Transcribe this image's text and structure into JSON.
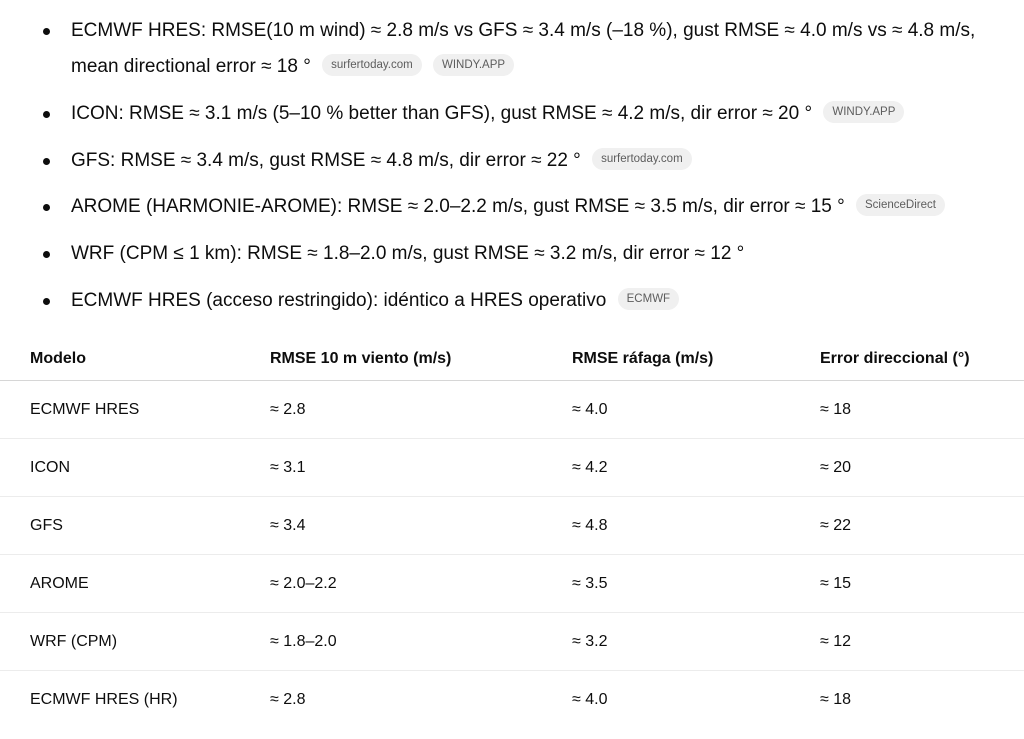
{
  "bullets": [
    {
      "lines": [
        "ECMWF HRES: RMSE(10 m wind) ≈ 2.8 m/s vs GFS ≈ 3.4 m/s (–18 %), gust RMSE ≈ 4.0 m/s vs ≈ 4.8 m/s,",
        "mean directional error ≈ 18 °"
      ],
      "chips": [
        "surfertoday.com",
        "WINDY.APP"
      ]
    },
    {
      "lines": [
        "ICON: RMSE ≈ 3.1 m/s (5–10 % better than GFS), gust RMSE ≈ 4.2 m/s, dir error ≈ 20 °"
      ],
      "chips": [
        "WINDY.APP"
      ]
    },
    {
      "lines": [
        "GFS: RMSE ≈ 3.4 m/s, gust RMSE ≈ 4.8 m/s, dir error ≈ 22 °"
      ],
      "chips": [
        "surfertoday.com"
      ]
    },
    {
      "lines": [
        "AROME (HARMONIE-AROME): RMSE ≈ 2.0–2.2 m/s, gust RMSE ≈ 3.5 m/s, dir error ≈ 15 °"
      ],
      "chips": [
        "ScienceDirect"
      ]
    },
    {
      "lines": [
        "WRF (CPM ≤ 1 km): RMSE ≈ 1.8–2.0 m/s, gust RMSE ≈ 3.2 m/s, dir error ≈ 12 °"
      ],
      "chips": []
    },
    {
      "lines": [
        "ECMWF HRES (acceso restringido): idéntico a HRES operativo"
      ],
      "chips": [
        "ECMWF"
      ]
    }
  ],
  "table": {
    "headers": [
      "Modelo",
      "RMSE 10 m viento (m/s)",
      "RMSE ráfaga (m/s)",
      "Error direccional (°)"
    ],
    "rows": [
      [
        "ECMWF HRES",
        "≈ 2.8",
        "≈ 4.0",
        "≈ 18"
      ],
      [
        "ICON",
        "≈ 3.1",
        "≈ 4.2",
        "≈ 20"
      ],
      [
        "GFS",
        "≈ 3.4",
        "≈ 4.8",
        "≈ 22"
      ],
      [
        "AROME",
        "≈ 2.0–2.2",
        "≈ 3.5",
        "≈ 15"
      ],
      [
        "WRF (CPM)",
        "≈ 1.8–2.0",
        "≈ 3.2",
        "≈ 12"
      ],
      [
        "ECMWF HRES (HR)",
        "≈ 2.8",
        "≈ 4.0",
        "≈ 18"
      ]
    ]
  }
}
